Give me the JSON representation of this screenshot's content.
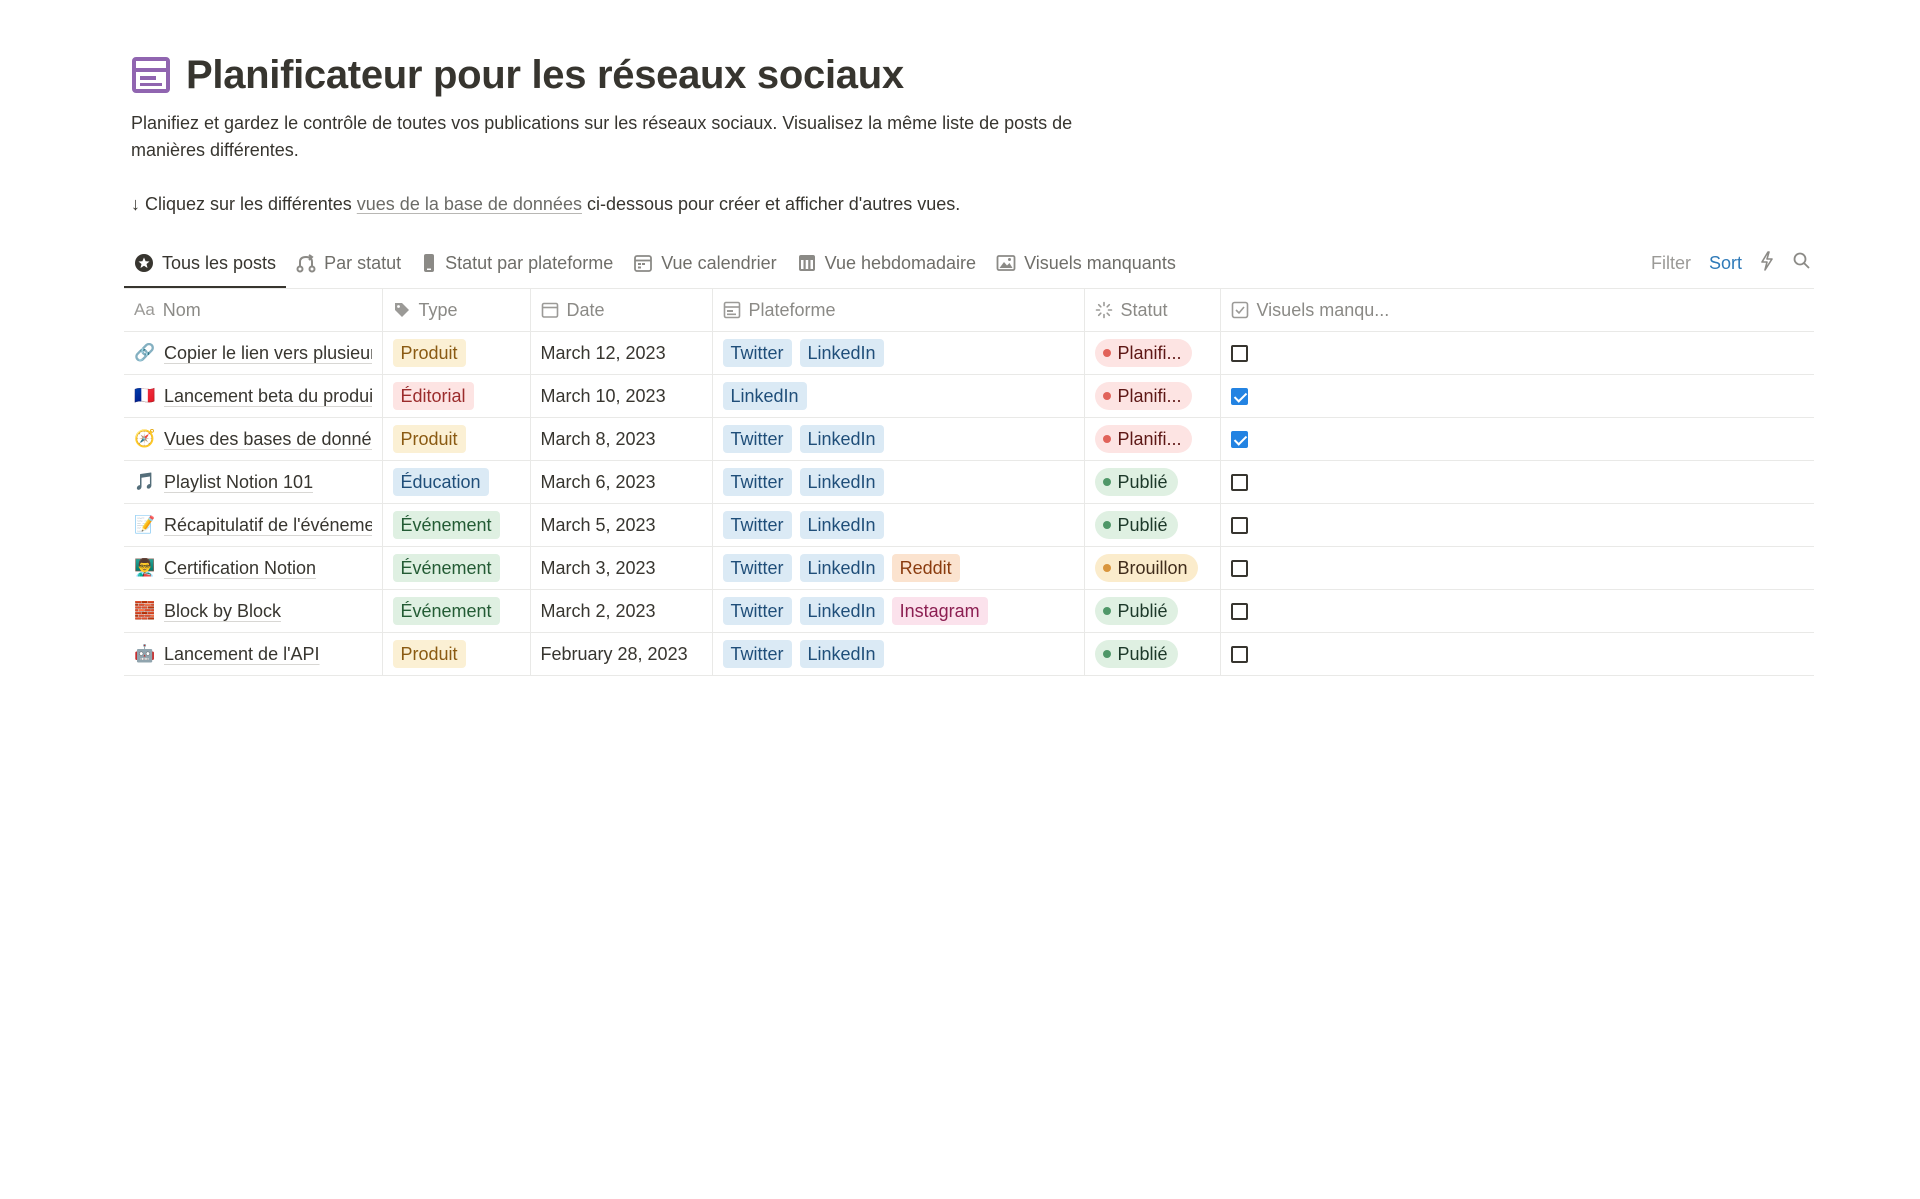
{
  "page": {
    "title": "Planificateur pour les réseaux sociaux",
    "icon": "layout-icon",
    "description": "Planifiez et gardez le contrôle de toutes vos publications sur les réseaux sociaux. Visualisez la même liste de posts de manières différentes.",
    "hint_before": "↓ Cliquez sur les différentes ",
    "hint_link": "vues de la base de données",
    "hint_after": " ci-dessous pour créer et afficher d'autres vues."
  },
  "views": [
    {
      "label": "Tous les posts",
      "icon": "star-circle-icon",
      "active": true
    },
    {
      "label": "Par statut",
      "icon": "branch-icon"
    },
    {
      "label": "Statut par plateforme",
      "icon": "phone-icon"
    },
    {
      "label": "Vue calendrier",
      "icon": "calendar-icon"
    },
    {
      "label": "Vue hebdomadaire",
      "icon": "calendar-grid-icon"
    },
    {
      "label": "Visuels manquants",
      "icon": "image-icon"
    }
  ],
  "tools": {
    "filter": "Filter",
    "sort": "Sort",
    "automation_icon": "lightning-icon",
    "search_icon": "search-icon"
  },
  "columns": {
    "name": "Nom",
    "name_prefix": "Aa",
    "type": "Type",
    "date": "Date",
    "platform": "Plateforme",
    "status": "Statut",
    "visuals": "Visuels manqu..."
  },
  "rows": [
    {
      "emoji": "🔗",
      "name": "Copier le lien vers plusieurs",
      "type": "Produit",
      "date": "March 12, 2023",
      "platforms": [
        "Twitter",
        "LinkedIn"
      ],
      "status": "Planifi...",
      "missing": false
    },
    {
      "emoji": "🇫🇷",
      "name": "Lancement beta du produit",
      "type": "Éditorial",
      "date": "March 10, 2023",
      "platforms": [
        "LinkedIn"
      ],
      "status": "Planifi...",
      "missing": true
    },
    {
      "emoji": "🧭",
      "name": "Vues des bases de données",
      "type": "Produit",
      "date": "March 8, 2023",
      "platforms": [
        "Twitter",
        "LinkedIn"
      ],
      "status": "Planifi...",
      "missing": true
    },
    {
      "emoji": "🎵",
      "name": "Playlist Notion 101",
      "type": "Éducation",
      "date": "March 6, 2023",
      "platforms": [
        "Twitter",
        "LinkedIn"
      ],
      "status": "Publié",
      "missing": false
    },
    {
      "emoji": "📝",
      "name": "Récapitulatif de l'événement",
      "type": "Événement",
      "date": "March 5, 2023",
      "platforms": [
        "Twitter",
        "LinkedIn"
      ],
      "status": "Publié",
      "missing": false
    },
    {
      "emoji": "👨‍🏫",
      "name": "Certification Notion",
      "type": "Événement",
      "date": "March 3, 2023",
      "platforms": [
        "Twitter",
        "LinkedIn",
        "Reddit"
      ],
      "status": "Brouillon",
      "missing": false
    },
    {
      "emoji": "🧱",
      "name": "Block by Block",
      "type": "Événement",
      "date": "March 2, 2023",
      "platforms": [
        "Twitter",
        "LinkedIn",
        "Instagram"
      ],
      "status": "Publié",
      "missing": false
    },
    {
      "emoji": "🤖",
      "name": "Lancement de l'API",
      "type": "Produit",
      "date": "February 28, 2023",
      "platforms": [
        "Twitter",
        "LinkedIn"
      ],
      "status": "Publié",
      "missing": false
    }
  ]
}
